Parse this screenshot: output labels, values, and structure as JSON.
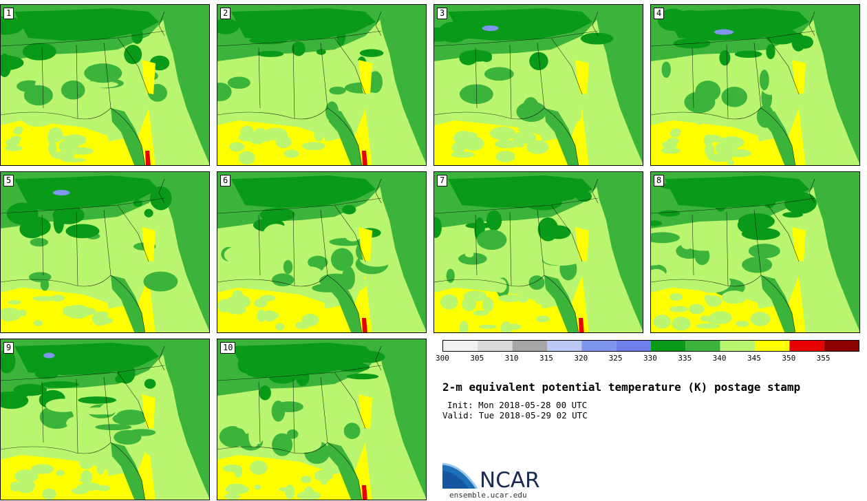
{
  "title": "2-m equivalent potential temperature (K) postage stamp",
  "init": {
    "label": "Init:",
    "value": "Mon 2018-05-28 00 UTC"
  },
  "valid": {
    "label": "Valid:",
    "value": "Tue 2018-05-29 02 UTC"
  },
  "logo": {
    "name": "NCAR",
    "url": "ensemble.ucar.edu"
  },
  "members": [
    "1",
    "2",
    "3",
    "4",
    "5",
    "6",
    "7",
    "8",
    "9",
    "10"
  ],
  "colorbar": {
    "ticks": [
      "300",
      "305",
      "310",
      "315",
      "320",
      "325",
      "330",
      "335",
      "340",
      "345",
      "350",
      "355"
    ],
    "colors": [
      "#f2f2f2",
      "#d9d9d9",
      "#a6a6a6",
      "#bcc9f5",
      "#7f95ee",
      "#6f7fee",
      "#0a9a1a",
      "#3cb43c",
      "#b9f56e",
      "#ffff00",
      "#e60000",
      "#8b0000"
    ]
  },
  "map_colors": {
    "ocean_east": "#3cb43c",
    "land_high": "#0a9a1a",
    "land_mid": "#3cb43c",
    "moist": "#b9f56e",
    "warm": "#ffff00",
    "hot": "#e60000",
    "cool": "#7f95ee"
  }
}
